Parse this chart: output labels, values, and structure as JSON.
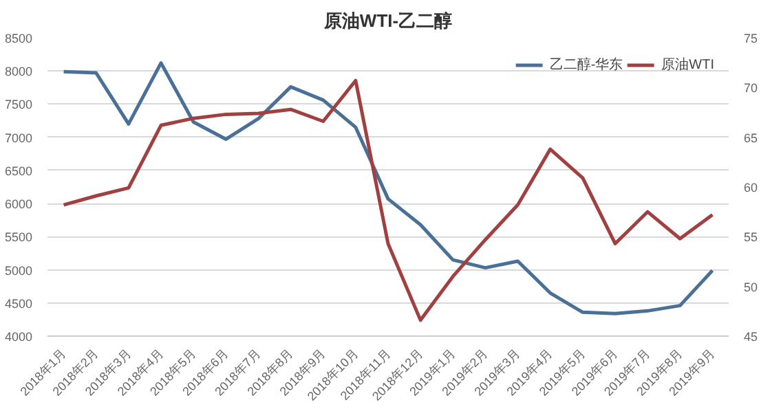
{
  "chart_data": {
    "type": "line",
    "title": "原油WTI-乙二醇",
    "categories": [
      "2018年1月",
      "2018年2月",
      "2018年3月",
      "2018年4月",
      "2018年5月",
      "2018年6月",
      "2018年7月",
      "2018年8月",
      "2018年9月",
      "2018年10月",
      "2018年11月",
      "2018年12月",
      "2019年1月",
      "2019年2月",
      "2019年3月",
      "2019年4月",
      "2019年5月",
      "2019年6月",
      "2019年7月",
      "2019年8月",
      "2019年9月"
    ],
    "series": [
      {
        "name": "乙二醇-华东",
        "color": "#4a7098",
        "values": [
          7990,
          7970,
          7200,
          8120,
          7230,
          6970,
          7280,
          7760,
          7560,
          7150,
          6070,
          5680,
          5150,
          5030,
          5130,
          4650,
          4360,
          4340,
          4380,
          4460,
          4990
        ]
      },
      {
        "name": "原油WTI",
        "color": "#a04040",
        "axis": "y2",
        "values": [
          58.2,
          59.1,
          59.9,
          66.2,
          66.9,
          67.3,
          67.4,
          67.8,
          66.6,
          70.7,
          54.3,
          46.6,
          51,
          54.7,
          58.2,
          63.8,
          60.9,
          54.3,
          57.5,
          54.8,
          57.2
        ]
      }
    ],
    "ylim": [
      4000,
      8500
    ],
    "yticks": [
      4000,
      4500,
      5000,
      5500,
      6000,
      6500,
      7000,
      7500,
      8000,
      8500
    ],
    "y2lim": [
      45,
      75
    ],
    "y2ticks": [
      45,
      50,
      55,
      60,
      65,
      70,
      75
    ],
    "grid": "y",
    "legend": "top right"
  }
}
